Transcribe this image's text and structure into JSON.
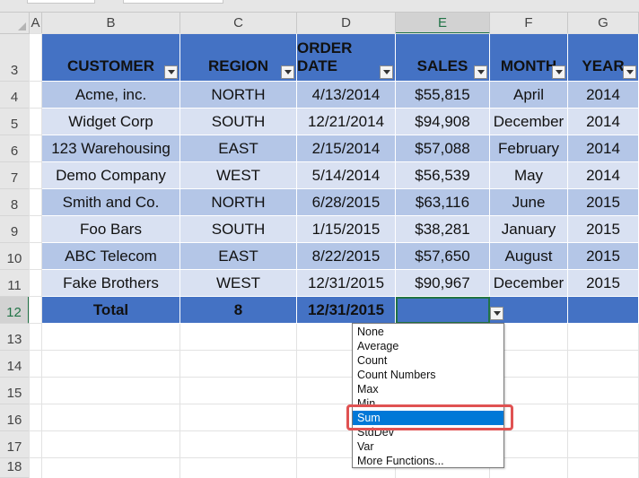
{
  "columns": [
    "A",
    "B",
    "C",
    "D",
    "E",
    "F",
    "G"
  ],
  "selected_column": "E",
  "rows": [
    "3",
    "4",
    "5",
    "6",
    "7",
    "8",
    "9",
    "10",
    "11",
    "12",
    "13",
    "14",
    "15",
    "16",
    "17",
    "18"
  ],
  "selected_row": "12",
  "table": {
    "headers": [
      "CUSTOMER",
      "REGION",
      "ORDER DATE",
      "SALES",
      "MONTH",
      "YEAR"
    ],
    "data": [
      [
        "Acme, inc.",
        "NORTH",
        "4/13/2014",
        "$55,815",
        "April",
        "2014"
      ],
      [
        "Widget Corp",
        "SOUTH",
        "12/21/2014",
        "$94,908",
        "December",
        "2014"
      ],
      [
        "123 Warehousing",
        "EAST",
        "2/15/2014",
        "$57,088",
        "February",
        "2014"
      ],
      [
        "Demo Company",
        "WEST",
        "5/14/2014",
        "$56,539",
        "May",
        "2014"
      ],
      [
        "Smith and Co.",
        "NORTH",
        "6/28/2015",
        "$63,116",
        "June",
        "2015"
      ],
      [
        "Foo Bars",
        "SOUTH",
        "1/15/2015",
        "$38,281",
        "January",
        "2015"
      ],
      [
        "ABC Telecom",
        "EAST",
        "8/22/2015",
        "$57,650",
        "August",
        "2015"
      ],
      [
        "Fake Brothers",
        "WEST",
        "12/31/2015",
        "$90,967",
        "December",
        "2015"
      ]
    ],
    "total_row": [
      "Total",
      "8",
      "12/31/2015",
      "",
      "",
      ""
    ]
  },
  "dropdown": {
    "items": [
      "None",
      "Average",
      "Count",
      "Count Numbers",
      "Max",
      "Min",
      "Sum",
      "StdDev",
      "Var",
      "More Functions..."
    ],
    "highlighted": "Sum"
  },
  "colors": {
    "header_fill": "#4472c4",
    "band_dark": "#b4c6e7",
    "band_light": "#d9e1f2",
    "selection_green": "#217346",
    "highlight_blue": "#0078d7",
    "callout_red": "#e05252"
  }
}
